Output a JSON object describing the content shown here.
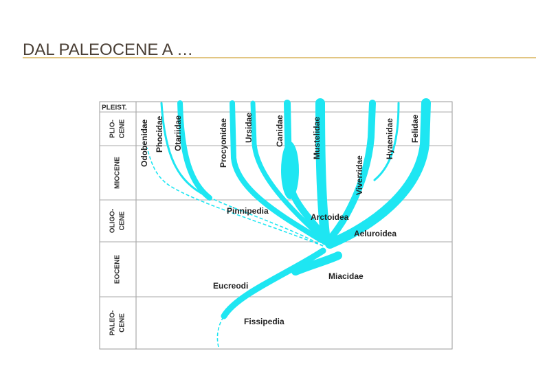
{
  "header": {
    "title": "DAL PALEOCENE A …"
  },
  "diagram": {
    "epochs": [
      {
        "lines": [
          "PLEIST."
        ]
      },
      {
        "lines": [
          "PLIO-",
          "CENE"
        ]
      },
      {
        "lines": [
          "MIOCENE"
        ]
      },
      {
        "lines": [
          "OLIGO-",
          "CENE"
        ]
      },
      {
        "lines": [
          "EOCENE"
        ]
      },
      {
        "lines": [
          "PALEO-",
          "CENE"
        ]
      }
    ],
    "families": [
      "Odobenidae",
      "Phocidae",
      "Otariidae",
      "Procyonidae",
      "Ursidae",
      "Canidae",
      "Mustelidae",
      "Viverridae",
      "Hyaenidae",
      "Felidae"
    ],
    "clades": [
      "Pinnipedia",
      "Arctoidea",
      "Aeluroidea",
      "Miacidae",
      "Eucreodi",
      "Fissipedia"
    ]
  }
}
